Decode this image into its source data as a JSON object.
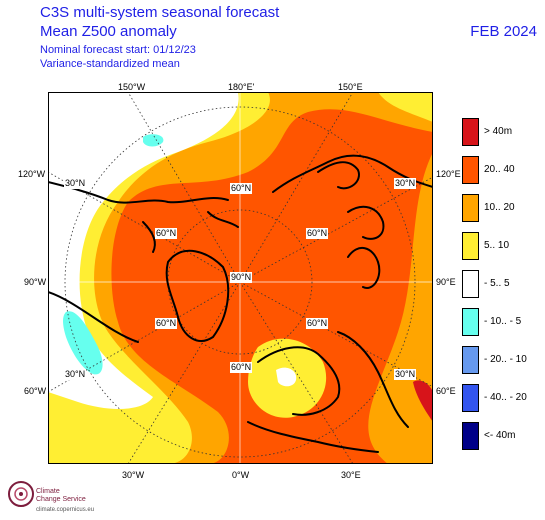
{
  "header": {
    "title_line1": "C3S multi-system seasonal forecast",
    "title_line2": "Mean Z500 anomaly",
    "subtitle1": "Nominal forecast start: 01/12/23",
    "subtitle2": "Variance-standardized mean",
    "month": "FEB 2024"
  },
  "map": {
    "top_labels": [
      "150°W",
      "180°E'",
      "150°E"
    ],
    "left_labels": [
      "120°W",
      "90°W",
      "60°W"
    ],
    "right_labels": [
      "120°E",
      "90°E",
      "60°E"
    ],
    "bottom_labels": [
      "30°W",
      "0°W",
      "30°E"
    ],
    "lat_labels": [
      "30°N",
      "60°N",
      "90°N",
      "60°N",
      "30°N",
      "60°N",
      "60°N",
      "60°N",
      "30°N",
      "30°N"
    ]
  },
  "legend": [
    {
      "label": "> 40m",
      "color": "#d7141a"
    },
    {
      "label": "20.. 40",
      "color": "#ff5500"
    },
    {
      "label": "10.. 20",
      "color": "#ffa500"
    },
    {
      "label": "5.. 10",
      "color": "#ffee33"
    },
    {
      "label": "- 5.. 5",
      "color": "#ffffff"
    },
    {
      "label": "- 10.. - 5",
      "color": "#66ffee"
    },
    {
      "label": "- 20.. - 10",
      "color": "#6699ee"
    },
    {
      "label": "- 40.. - 20",
      "color": "#3355ee"
    },
    {
      "label": "<- 40m",
      "color": "#000088"
    }
  ],
  "logo": {
    "line1": "Climate",
    "line2": "Change Service",
    "url": "climate.copernicus.eu"
  }
}
